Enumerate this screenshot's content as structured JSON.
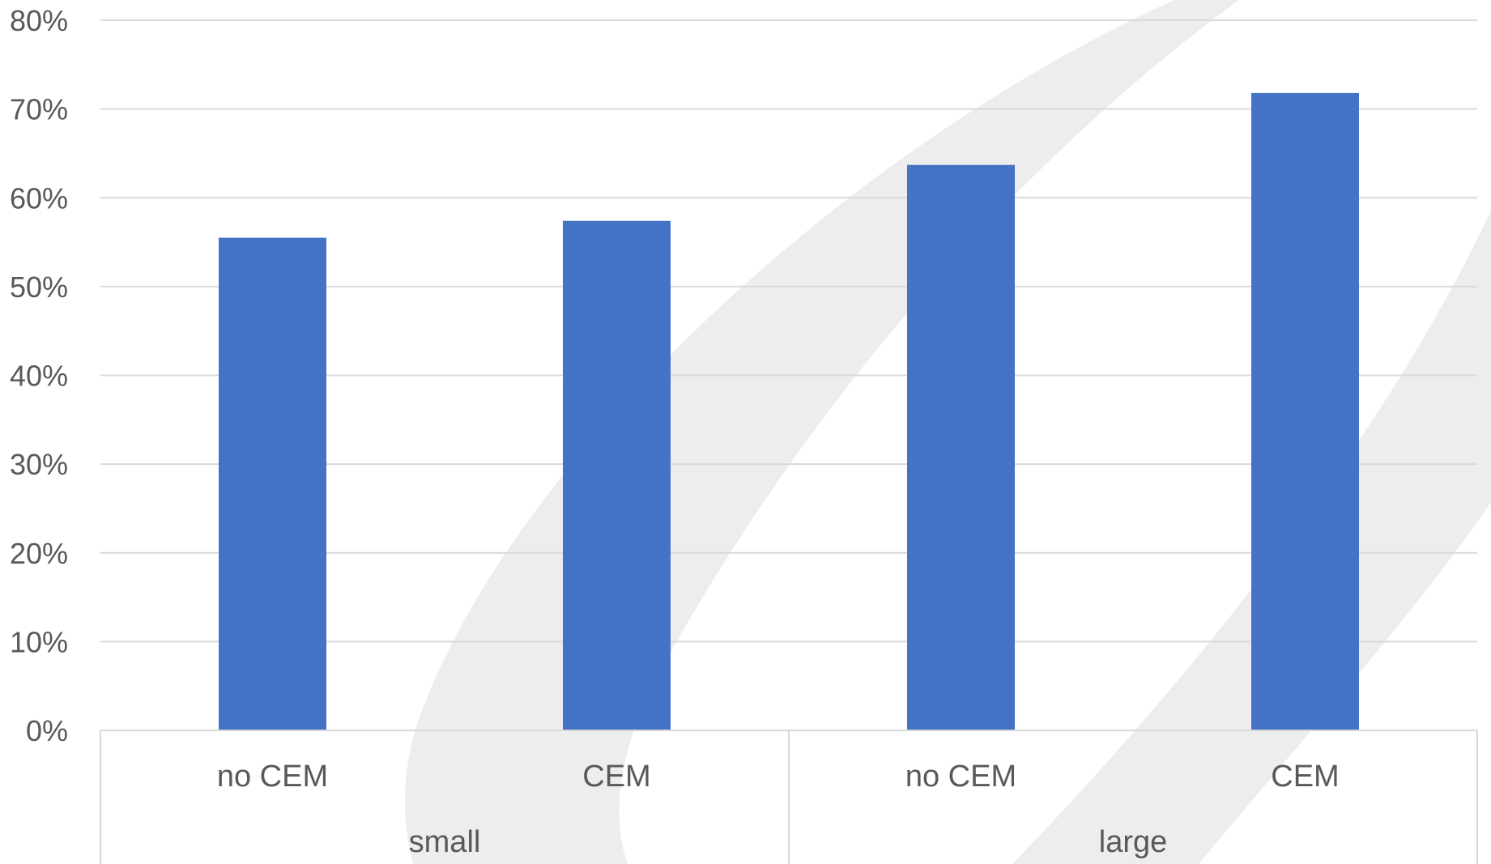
{
  "chart_data": {
    "type": "bar",
    "categories": [
      "no CEM",
      "CEM",
      "no CEM",
      "CEM"
    ],
    "groups": [
      {
        "label": "small",
        "categories": [
          "no CEM",
          "CEM"
        ]
      },
      {
        "label": "large",
        "categories": [
          "no CEM",
          "CEM"
        ]
      }
    ],
    "values": [
      55.5,
      57.4,
      63.7,
      71.8
    ],
    "value_unit": "%",
    "ylim": [
      0,
      80
    ],
    "yticks": [
      "0%",
      "10%",
      "20%",
      "30%",
      "40%",
      "50%",
      "60%",
      "70%",
      "80%"
    ],
    "ytick_values": [
      0,
      10,
      20,
      30,
      40,
      50,
      60,
      70,
      80
    ],
    "grid": true,
    "legend": "none",
    "bar_color": "#4472C4",
    "gridline_color": "#D9D9D9",
    "watermark_color": "#EDEDED"
  }
}
